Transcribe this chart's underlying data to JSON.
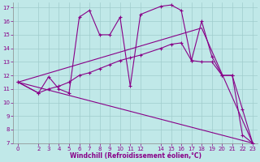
{
  "xlabel": "Windchill (Refroidissement éolien,°C)",
  "xlim": [
    -0.5,
    23.5
  ],
  "ylim": [
    7,
    17.4
  ],
  "yticks": [
    7,
    8,
    9,
    10,
    11,
    12,
    13,
    14,
    15,
    16,
    17
  ],
  "xticks": [
    0,
    2,
    3,
    4,
    5,
    6,
    7,
    8,
    9,
    10,
    11,
    12,
    14,
    15,
    16,
    17,
    18,
    19,
    20,
    21,
    22,
    23
  ],
  "bg_color": "#c0e8e8",
  "grid_color": "#a0cccc",
  "line_color": "#880088",
  "line_width": 0.8,
  "marker_size": 3.5,
  "lines": [
    {
      "has_markers": true,
      "x": [
        0,
        2,
        3,
        4,
        5,
        6,
        7,
        8,
        9,
        10,
        11,
        12,
        14,
        15,
        16,
        17,
        18,
        19,
        20,
        21,
        22,
        23
      ],
      "y": [
        11.5,
        10.7,
        11.9,
        11.0,
        10.7,
        16.3,
        16.8,
        15.0,
        15.0,
        16.3,
        11.2,
        16.5,
        17.1,
        17.2,
        16.8,
        13.1,
        16.0,
        13.4,
        12.0,
        12.0,
        7.6,
        7.0
      ]
    },
    {
      "has_markers": true,
      "x": [
        0,
        2,
        3,
        4,
        5,
        6,
        7,
        8,
        9,
        10,
        11,
        12,
        14,
        15,
        16,
        17,
        18,
        19,
        20,
        21,
        22,
        23
      ],
      "y": [
        11.5,
        10.7,
        11.0,
        11.2,
        11.5,
        12.0,
        12.2,
        12.5,
        12.8,
        13.1,
        13.3,
        13.5,
        14.0,
        14.3,
        14.4,
        13.1,
        13.0,
        13.0,
        12.0,
        12.0,
        9.5,
        7.0
      ]
    },
    {
      "has_markers": false,
      "x": [
        0,
        23
      ],
      "y": [
        11.5,
        7.0
      ]
    },
    {
      "has_markers": false,
      "x": [
        0,
        18,
        23
      ],
      "y": [
        11.5,
        15.5,
        7.0
      ]
    }
  ]
}
